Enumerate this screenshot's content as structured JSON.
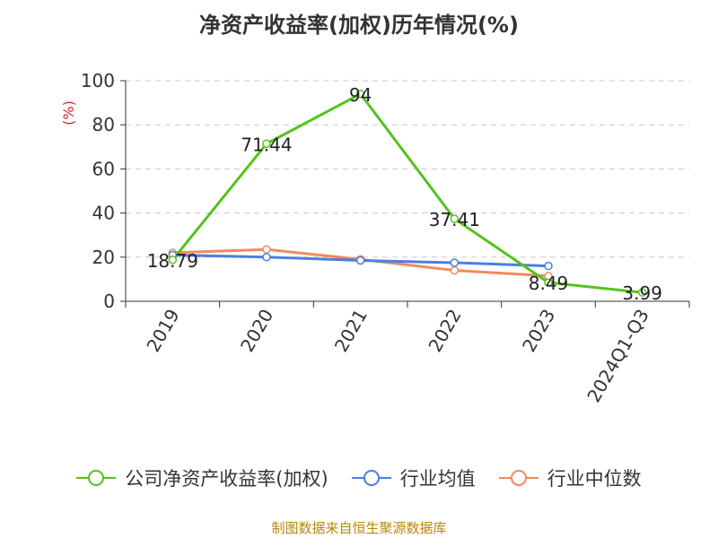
{
  "title": "净资产收益率(加权)历年情况(%)",
  "source": "制图数据来自恒生聚源数据库",
  "colors": {
    "source": "#b8860b",
    "unit": "#d62728"
  },
  "chart_data": {
    "type": "line",
    "categories": [
      "2019",
      "2020",
      "2021",
      "2022",
      "2023",
      "2024Q1-Q3"
    ],
    "ylabel": "(%)",
    "ylim": [
      0,
      100
    ],
    "yticks": [
      "0",
      "20",
      "40",
      "60",
      "80",
      "100"
    ],
    "grid": true,
    "legend_position": "bottom",
    "series": [
      {
        "name": "公司净资产收益率(加权)",
        "color": "#52c41a",
        "values": [
          18.79,
          71.44,
          94,
          37.41,
          8.49,
          3.99
        ],
        "labels": [
          "18.79",
          "71.44",
          "94",
          "37.41",
          "8.49",
          "3.99"
        ]
      },
      {
        "name": "行业均值",
        "color": "#4a7fe0",
        "values": [
          21,
          20,
          18.5,
          17.5,
          16,
          null
        ]
      },
      {
        "name": "行业中位数",
        "color": "#f08a5d",
        "values": [
          22,
          23.5,
          19,
          14,
          11.5,
          null
        ]
      }
    ]
  }
}
